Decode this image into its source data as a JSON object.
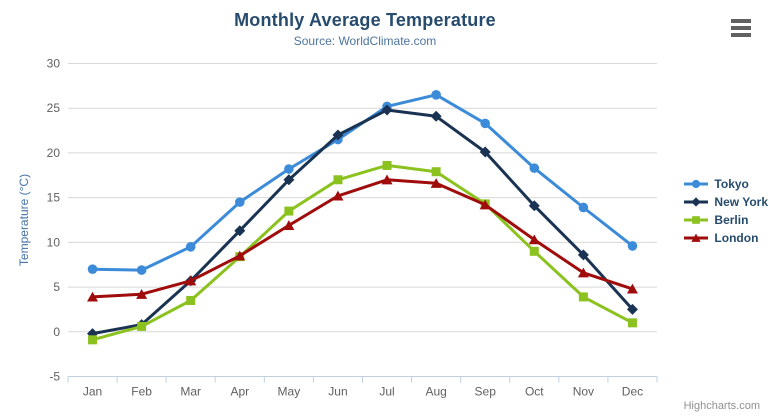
{
  "header": {
    "title": "Monthly Average Temperature",
    "subtitle": "Source: WorldClimate.com"
  },
  "credits": {
    "label": "Highcharts.com"
  },
  "icons": {
    "context_menu": "hamburger-icon"
  },
  "colors": {
    "title": "#274b6d",
    "subtitle": "#4d759e",
    "axis_title": "#4572a7",
    "axis_labels": "#606060",
    "gridline": "#d8d8d8",
    "axis_line": "#c0d0e0",
    "legend_text": "#274b6d",
    "credits_text": "#909090"
  },
  "chart_data": {
    "type": "line",
    "title": "Monthly Average Temperature",
    "subtitle": "Source: WorldClimate.com",
    "categories": [
      "Jan",
      "Feb",
      "Mar",
      "Apr",
      "May",
      "Jun",
      "Jul",
      "Aug",
      "Sep",
      "Oct",
      "Nov",
      "Dec"
    ],
    "series": [
      {
        "name": "Tokyo",
        "color": "#3c8bd9",
        "marker": "circle",
        "values": [
          7.0,
          6.9,
          9.5,
          14.5,
          18.2,
          21.5,
          25.2,
          26.5,
          23.3,
          18.3,
          13.9,
          9.6
        ]
      },
      {
        "name": "New York",
        "color": "#1a3353",
        "marker": "diamond",
        "values": [
          -0.2,
          0.8,
          5.7,
          11.3,
          17.0,
          22.0,
          24.8,
          24.1,
          20.1,
          14.1,
          8.6,
          2.5
        ]
      },
      {
        "name": "Berlin",
        "color": "#8cc21f",
        "marker": "square",
        "values": [
          -0.9,
          0.6,
          3.5,
          8.4,
          13.5,
          17.0,
          18.6,
          17.9,
          14.3,
          9.0,
          3.9,
          1.0
        ]
      },
      {
        "name": "London",
        "color": "#a00c0c",
        "marker": "triangle",
        "values": [
          3.9,
          4.2,
          5.7,
          8.5,
          11.9,
          15.2,
          17.0,
          16.6,
          14.2,
          10.3,
          6.6,
          4.8
        ]
      }
    ],
    "xlabel": "",
    "ylabel": "Temperature (°C)",
    "ylim": [
      -5,
      30
    ],
    "ytick_step": 5,
    "grid": true,
    "legend_position": "right"
  }
}
